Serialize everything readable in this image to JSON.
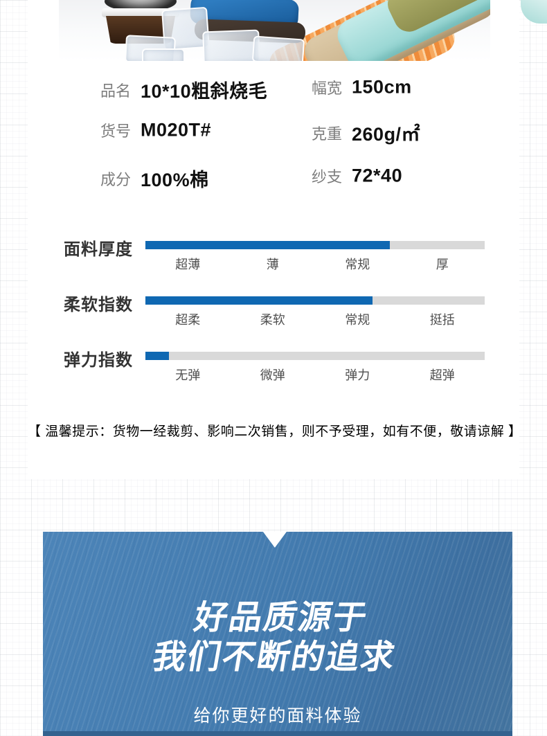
{
  "theme": {
    "bar_fill_color": "#0f68b2",
    "bar_track_color": "#d9d9d9",
    "banner_bg_color": "#4179ad",
    "banner_strip_color": "#33628f",
    "banner_text_color": "#ffffff",
    "label_color": "#7d7d7d",
    "value_color": "#111111"
  },
  "photo": {
    "description": "folded fabric stacks with ice cubes and jar",
    "fabric_colors": [
      "#2e7cc0",
      "#4a3d34",
      "#ef8c3a",
      "#ddcaa8",
      "#a6dad6",
      "#b0b06c"
    ]
  },
  "specs": {
    "rows": [
      {
        "left": {
          "label": "品名",
          "value": "10*10粗斜烧毛"
        },
        "right": {
          "label": "幅宽",
          "value": "150cm"
        }
      },
      {
        "left": {
          "label": "货号",
          "value": "M020T#"
        },
        "right": {
          "label": "克重",
          "value": "260g/㎡"
        }
      },
      {
        "left": {
          "label": "成分",
          "value": "100%棉"
        },
        "right": {
          "label": "纱支",
          "value": "72*40"
        }
      }
    ]
  },
  "indicators": {
    "rows": [
      {
        "title": "面料厚度",
        "percent": 72,
        "labels": [
          "超薄",
          "薄",
          "常规",
          "厚"
        ]
      },
      {
        "title": "柔软指数",
        "percent": 67,
        "labels": [
          "超柔",
          "柔软",
          "常规",
          "挺括"
        ]
      },
      {
        "title": "弹力指数",
        "percent": 7,
        "labels": [
          "无弹",
          "微弹",
          "弹力",
          "超弹"
        ]
      }
    ]
  },
  "notice": {
    "text": "【 温馨提示：货物一经裁剪、影响二次销售，则不予受理，如有不便，敬请谅解 】"
  },
  "banner": {
    "heading_line1": "好品质源于",
    "heading_line2": "我们不断的追求",
    "subtitle": "给你更好的面料体验"
  }
}
